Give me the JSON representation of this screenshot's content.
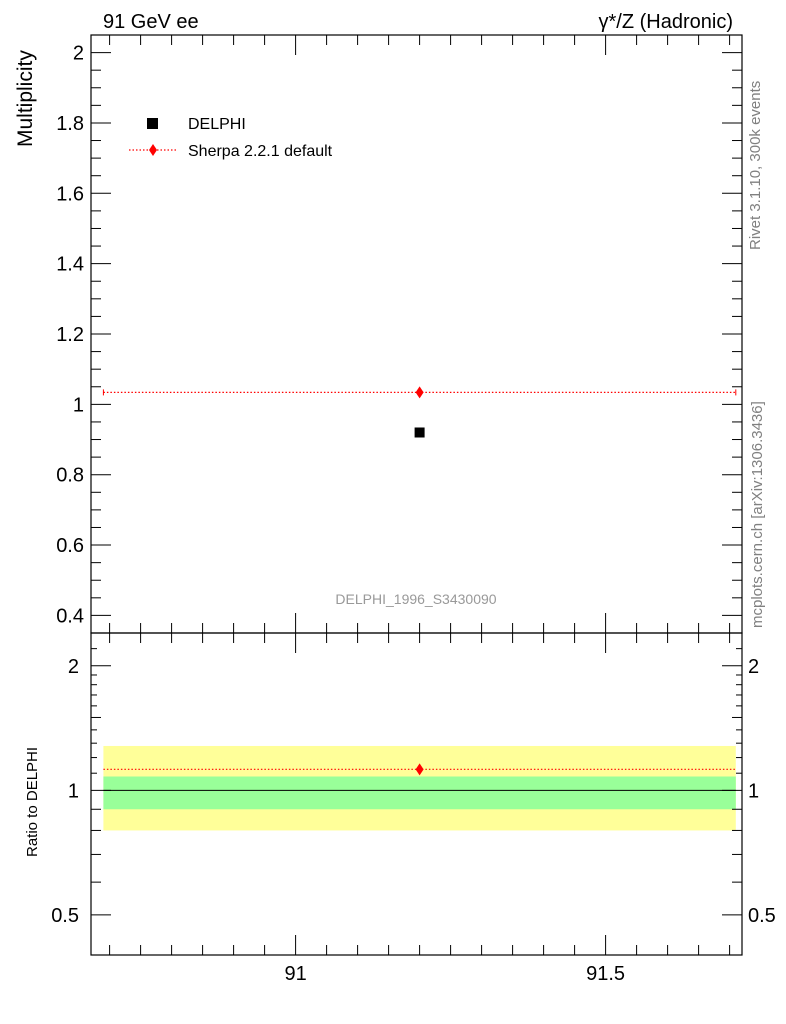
{
  "header": {
    "left_label": "91 GeV ee",
    "right_label": "γ*/Z (Hadronic)"
  },
  "side_labels": {
    "rivet": "Rivet 3.1.10,  300k events",
    "mcplots": "mcplots.cern.ch [arXiv:1306.3436]"
  },
  "analysis_label": "DELPHI_1996_S3430090",
  "colors": {
    "data": "#000000",
    "mc": "#ff0000",
    "band_inner": "#99ff99",
    "band_outer": "#ffff99",
    "analysis_label": "#999999",
    "side_labels": "#808080"
  },
  "chart_data": [
    {
      "type": "scatter",
      "ylabel": "Multiplicity",
      "xlim": [
        90.67,
        91.72
      ],
      "ylim": [
        0.35,
        2.05
      ],
      "yticks": [
        0.4,
        0.6,
        0.8,
        1,
        1.2,
        1.4,
        1.6,
        1.8,
        2
      ],
      "ytick_labels": [
        "0.4",
        "0.6",
        "0.8",
        "1",
        "1.2",
        "1.4",
        "1.6",
        "1.8",
        "2"
      ],
      "legend_position": "top-left",
      "series": [
        {
          "name": "DELPHI",
          "marker": "square",
          "x": [
            91.2
          ],
          "y": [
            0.92
          ]
        },
        {
          "name": "Sherpa 2.2.1 default",
          "marker": "diamond",
          "line": "dotted",
          "x": [
            91.2
          ],
          "y": [
            1.034
          ],
          "x_range": [
            90.69,
            91.71
          ]
        }
      ]
    },
    {
      "type": "scatter",
      "ylabel": "Ratio to DELPHI",
      "yscale": "log",
      "xlim": [
        90.67,
        91.72
      ],
      "ylim": [
        0.4,
        2.4
      ],
      "yticks": [
        0.5,
        1,
        2
      ],
      "ytick_labels": [
        "0.5",
        "1",
        "2"
      ],
      "xticks": [
        91,
        91.5
      ],
      "xtick_labels": [
        "91",
        "91.5"
      ],
      "bands": {
        "inner": [
          0.9,
          1.08
        ],
        "outer": [
          0.8,
          1.28
        ],
        "x_range": [
          90.69,
          91.71
        ]
      },
      "series": [
        {
          "name": "Sherpa 2.2.1 default",
          "marker": "diamond",
          "line": "dotted",
          "x": [
            91.2
          ],
          "y": [
            1.124
          ],
          "x_range": [
            90.69,
            91.71
          ]
        }
      ]
    }
  ]
}
